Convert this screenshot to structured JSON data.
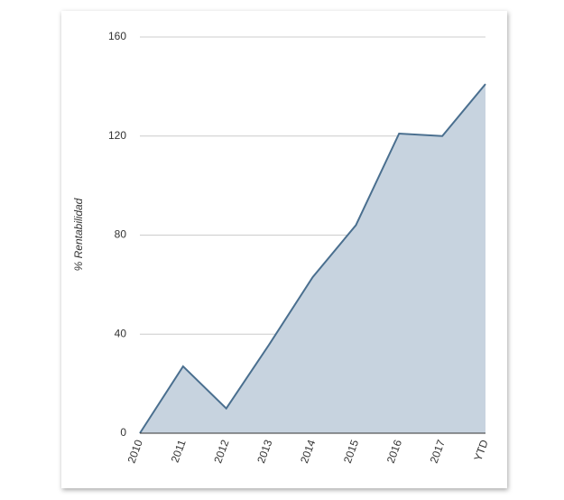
{
  "chart_data": {
    "type": "area",
    "y_label": "% Rentabilidad",
    "categories": [
      "2010",
      "2011",
      "2012",
      "2013",
      "2014",
      "2015",
      "2016",
      "2017",
      "YTD"
    ],
    "values": [
      0,
      27,
      10,
      36,
      63,
      84,
      121,
      120,
      141
    ],
    "color": "#4a6f8f",
    "fill": "#c7d3df",
    "ylim": [
      0,
      160
    ],
    "yticks": [
      0,
      40,
      80,
      120,
      160
    ],
    "grid": true
  }
}
